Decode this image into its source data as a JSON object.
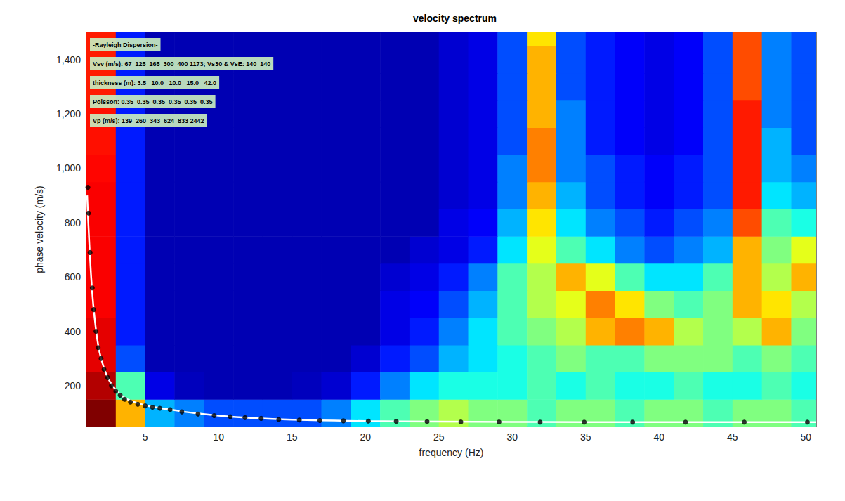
{
  "chart_data": {
    "type": "heatmap",
    "title": "velocity spectrum",
    "x_label": "frequency (Hz)",
    "y_label": "phase velocity (m/s)",
    "annotations": [
      "-Rayleigh Dispersion-",
      "Vsv (m/s): 67  125  165  300  400 1173; Vs30 & VsE: 140  140",
      "thickness (m): 3.5   10.0   10.0   15.0   42.0",
      "Poisson: 0.35  0.35  0.35  0.35  0.35  0.35",
      "Vp (m/s): 139  260  343  624  833 2442"
    ],
    "xlim": [
      1,
      50.7
    ],
    "xticks": [
      5,
      10,
      15,
      20,
      25,
      30,
      35,
      40,
      45,
      50
    ],
    "ylim": [
      50,
      1500
    ],
    "yticks": [
      200,
      400,
      600,
      800,
      1000,
      1200,
      1400
    ],
    "grid": false,
    "cells": {
      "x": [
        2,
        4,
        6,
        8,
        10,
        12,
        14,
        16,
        18,
        20,
        22,
        24,
        26,
        28,
        30,
        32,
        34,
        36,
        38,
        40,
        42,
        44,
        46,
        48,
        50
      ],
      "y": [
        100,
        200,
        300,
        400,
        500,
        600,
        700,
        800,
        900,
        1000,
        1100,
        1200,
        1300,
        1400,
        1500
      ],
      "range": [
        0,
        1
      ],
      "values": [
        [
          1.0,
          0.7,
          0.3,
          0.25,
          0.2,
          0.2,
          0.2,
          0.2,
          0.25,
          0.35,
          0.45,
          0.5,
          0.55,
          0.5,
          0.5,
          0.45,
          0.5,
          0.5,
          0.45,
          0.5,
          0.5,
          0.45,
          0.5,
          0.5,
          0.45
        ],
        [
          0.95,
          0.45,
          0.1,
          0.06,
          0.05,
          0.05,
          0.05,
          0.06,
          0.08,
          0.15,
          0.25,
          0.35,
          0.4,
          0.4,
          0.4,
          0.45,
          0.4,
          0.45,
          0.4,
          0.4,
          0.45,
          0.4,
          0.4,
          0.45,
          0.4
        ],
        [
          0.9,
          0.2,
          0.05,
          0.05,
          0.05,
          0.05,
          0.05,
          0.05,
          0.05,
          0.08,
          0.15,
          0.2,
          0.3,
          0.35,
          0.4,
          0.45,
          0.5,
          0.45,
          0.45,
          0.5,
          0.5,
          0.5,
          0.45,
          0.5,
          0.45
        ],
        [
          0.9,
          0.15,
          0.05,
          0.05,
          0.05,
          0.05,
          0.05,
          0.05,
          0.05,
          0.05,
          0.1,
          0.15,
          0.25,
          0.35,
          0.45,
          0.5,
          0.55,
          0.7,
          0.75,
          0.7,
          0.55,
          0.5,
          0.55,
          0.7,
          0.5
        ],
        [
          0.88,
          0.15,
          0.05,
          0.05,
          0.05,
          0.05,
          0.05,
          0.05,
          0.05,
          0.05,
          0.1,
          0.12,
          0.2,
          0.3,
          0.45,
          0.55,
          0.6,
          0.75,
          0.65,
          0.5,
          0.45,
          0.5,
          0.7,
          0.65,
          0.55
        ],
        [
          0.88,
          0.15,
          0.05,
          0.05,
          0.05,
          0.05,
          0.05,
          0.05,
          0.05,
          0.05,
          0.08,
          0.1,
          0.15,
          0.25,
          0.45,
          0.55,
          0.7,
          0.6,
          0.45,
          0.35,
          0.35,
          0.45,
          0.7,
          0.55,
          0.7
        ],
        [
          0.88,
          0.15,
          0.05,
          0.05,
          0.05,
          0.05,
          0.05,
          0.05,
          0.05,
          0.05,
          0.05,
          0.08,
          0.1,
          0.15,
          0.35,
          0.6,
          0.45,
          0.35,
          0.25,
          0.2,
          0.25,
          0.3,
          0.7,
          0.5,
          0.6
        ],
        [
          0.88,
          0.15,
          0.05,
          0.05,
          0.05,
          0.05,
          0.05,
          0.05,
          0.05,
          0.05,
          0.05,
          0.05,
          0.1,
          0.12,
          0.3,
          0.65,
          0.35,
          0.25,
          0.2,
          0.15,
          0.2,
          0.25,
          0.8,
          0.45,
          0.4
        ],
        [
          0.88,
          0.15,
          0.05,
          0.05,
          0.05,
          0.05,
          0.05,
          0.05,
          0.05,
          0.05,
          0.05,
          0.05,
          0.08,
          0.1,
          0.25,
          0.7,
          0.3,
          0.2,
          0.15,
          0.12,
          0.15,
          0.2,
          0.85,
          0.35,
          0.3
        ],
        [
          0.87,
          0.15,
          0.05,
          0.05,
          0.05,
          0.05,
          0.05,
          0.05,
          0.05,
          0.05,
          0.05,
          0.05,
          0.08,
          0.1,
          0.25,
          0.75,
          0.25,
          0.2,
          0.15,
          0.12,
          0.15,
          0.2,
          0.85,
          0.3,
          0.25
        ],
        [
          0.86,
          0.15,
          0.05,
          0.05,
          0.05,
          0.05,
          0.05,
          0.05,
          0.05,
          0.05,
          0.05,
          0.05,
          0.08,
          0.1,
          0.2,
          0.75,
          0.25,
          0.15,
          0.12,
          0.1,
          0.12,
          0.2,
          0.85,
          0.3,
          0.2
        ],
        [
          0.86,
          0.15,
          0.05,
          0.05,
          0.05,
          0.05,
          0.05,
          0.05,
          0.05,
          0.05,
          0.05,
          0.05,
          0.08,
          0.1,
          0.2,
          0.7,
          0.25,
          0.15,
          0.12,
          0.1,
          0.12,
          0.2,
          0.85,
          0.25,
          0.2
        ],
        [
          0.85,
          0.15,
          0.05,
          0.05,
          0.05,
          0.05,
          0.05,
          0.05,
          0.05,
          0.05,
          0.05,
          0.05,
          0.08,
          0.1,
          0.2,
          0.7,
          0.2,
          0.15,
          0.12,
          0.1,
          0.12,
          0.2,
          0.8,
          0.25,
          0.2
        ],
        [
          0.85,
          0.15,
          0.05,
          0.05,
          0.05,
          0.05,
          0.05,
          0.05,
          0.05,
          0.05,
          0.05,
          0.05,
          0.08,
          0.1,
          0.2,
          0.7,
          0.2,
          0.15,
          0.12,
          0.1,
          0.12,
          0.2,
          0.8,
          0.25,
          0.2
        ],
        [
          0.85,
          0.15,
          0.05,
          0.05,
          0.05,
          0.05,
          0.05,
          0.05,
          0.05,
          0.05,
          0.05,
          0.05,
          0.08,
          0.1,
          0.2,
          0.65,
          0.2,
          0.15,
          0.12,
          0.1,
          0.12,
          0.2,
          0.8,
          0.25,
          0.2
        ]
      ]
    },
    "series": [
      {
        "type": "line",
        "color": "#ffffff",
        "line_style": "solid",
        "x": [
          1.05,
          1.2,
          1.4,
          1.6,
          1.8,
          2.0,
          2.3,
          2.6,
          3.0,
          3.5,
          4,
          5,
          6,
          7,
          8,
          10,
          12,
          15,
          20,
          25,
          30,
          40,
          50.7
        ],
        "values": [
          900,
          720,
          540,
          430,
          350,
          300,
          250,
          215,
          185,
          160,
          145,
          128,
          118,
          110,
          102,
          90,
          82,
          75,
          70,
          68,
          67,
          66,
          66
        ]
      },
      {
        "type": "scatter",
        "color": "#000000",
        "marker": "circle",
        "x": [
          1.1,
          1.15,
          1.25,
          1.4,
          1.5,
          1.65,
          1.8,
          2.0,
          2.2,
          2.45,
          2.7,
          3.0,
          3.3,
          3.6,
          4.0,
          4.5,
          5.0,
          5.5,
          6.0,
          6.7,
          7.5,
          8.6,
          9.7,
          10.8,
          11.8,
          12.9,
          14.1,
          15.5,
          16.9,
          18.5,
          20.2,
          22.1,
          24.2,
          26.5,
          29.1,
          31.9,
          34.9,
          38.2,
          41.8,
          45.8,
          50.1
        ],
        "values": [
          930,
          835,
          690,
          560,
          480,
          400,
          340,
          300,
          260,
          230,
          200,
          180,
          165,
          150,
          140,
          132,
          126,
          121,
          117,
          112,
          104,
          96,
          90,
          86,
          83,
          80,
          76,
          74,
          72,
          71,
          70,
          69,
          68,
          67,
          67,
          66,
          66,
          66,
          66,
          66,
          66
        ]
      }
    ]
  }
}
